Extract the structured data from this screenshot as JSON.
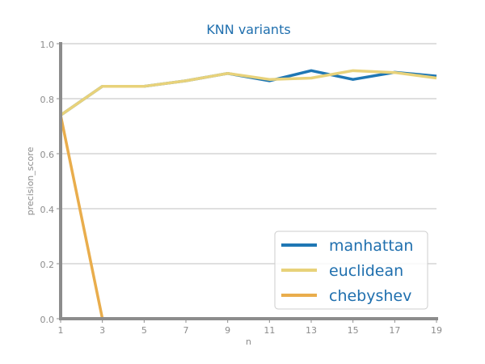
{
  "colors": {
    "title": "#1f6fae",
    "grid": "#cccccc",
    "axis": "#8c8c8c",
    "tick_text": "#8c8c8c",
    "legend_text": "#1f6fae",
    "legend_border": "#cccccc"
  },
  "chart_data": {
    "type": "line",
    "title": "KNN variants",
    "xlabel": "n",
    "ylabel": "precision_score",
    "x": [
      1,
      3,
      5,
      7,
      9,
      11,
      13,
      15,
      17,
      19
    ],
    "xlim": [
      1,
      19
    ],
    "ylim": [
      0.0,
      1.0
    ],
    "xticks": [
      "1",
      "3",
      "5",
      "7",
      "9",
      "11",
      "13",
      "15",
      "17",
      "19"
    ],
    "yticks": [
      "0.0",
      "0.2",
      "0.4",
      "0.6",
      "0.8",
      "1.0"
    ],
    "grid": "horizontal",
    "legend_position": "lower-right",
    "series": [
      {
        "name": "manhattan",
        "color": "#1f77b4",
        "values": [
          0.74,
          0.845,
          0.845,
          0.865,
          0.892,
          0.865,
          0.902,
          0.87,
          0.896,
          0.882
        ]
      },
      {
        "name": "euclidean",
        "color": "#e8d27a",
        "values": [
          0.74,
          0.845,
          0.845,
          0.865,
          0.892,
          0.87,
          0.875,
          0.902,
          0.895,
          0.875
        ]
      },
      {
        "name": "chebyshev",
        "color": "#e9ad4c",
        "values": [
          0.74,
          0.0,
          0.0,
          0.0,
          0.0,
          0.0,
          0.0,
          0.0,
          0.0,
          0.0
        ]
      }
    ]
  }
}
